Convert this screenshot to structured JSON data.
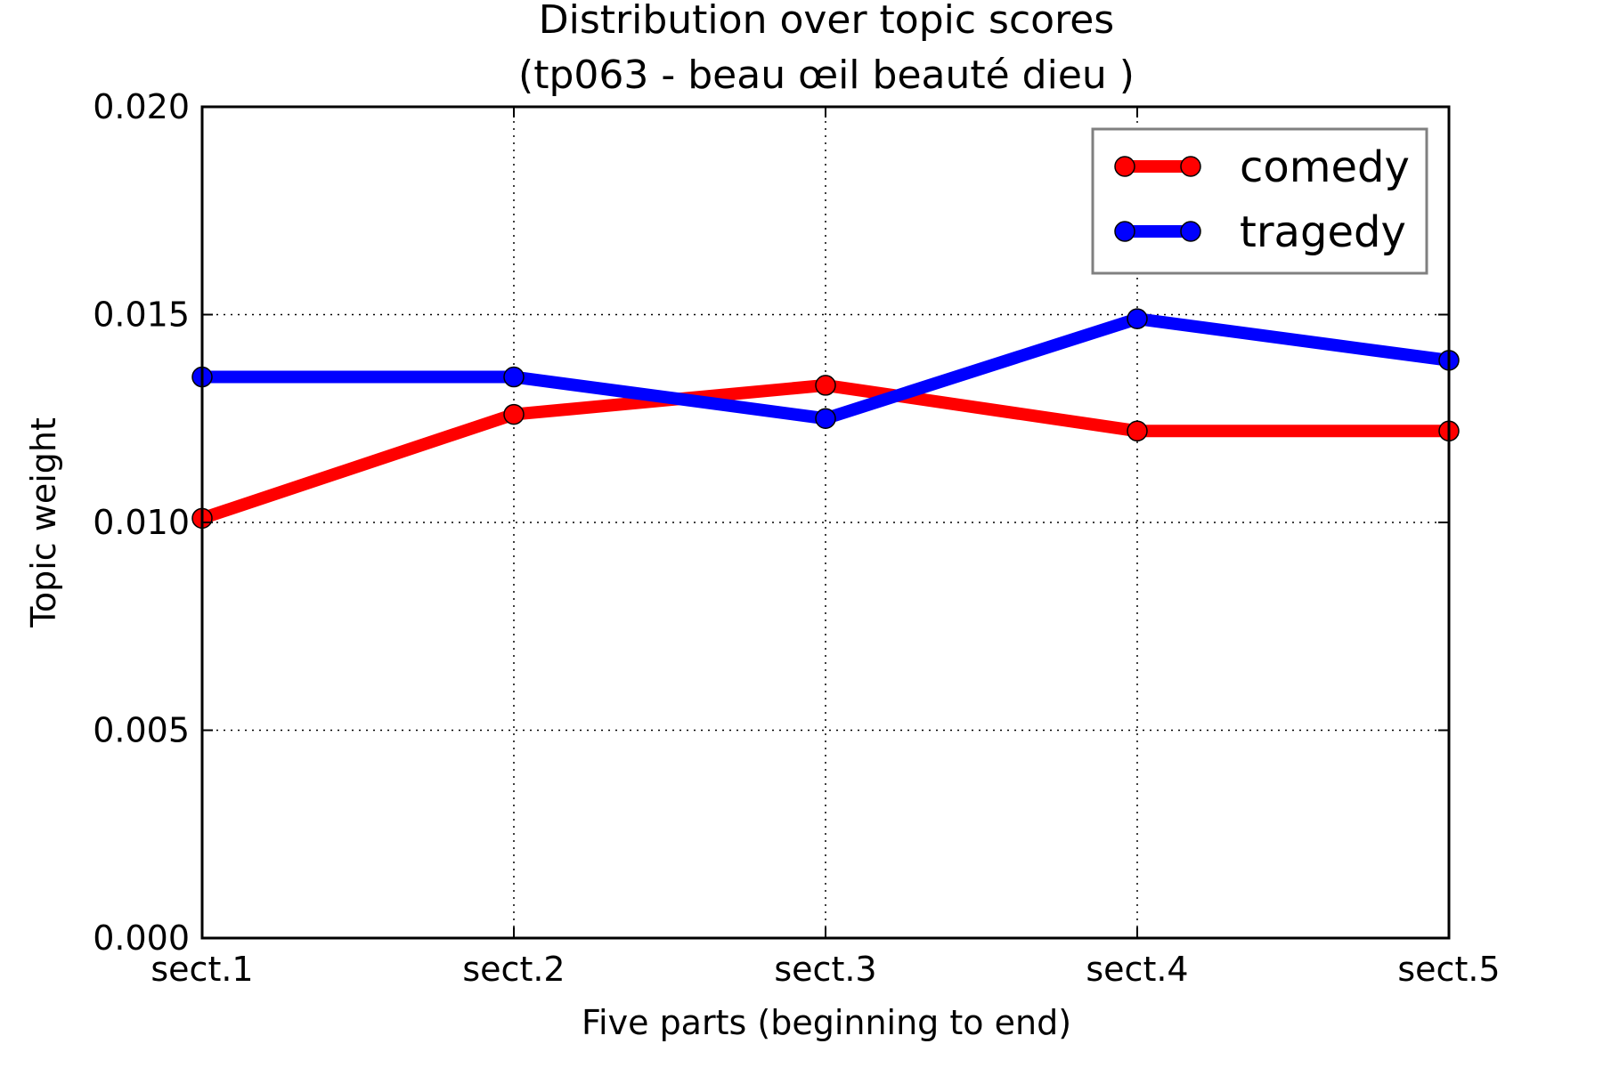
{
  "chart_data": {
    "type": "line",
    "title": "Distribution over topic scores",
    "subtitle": "(tp063 - beau œil beauté dieu )",
    "xlabel": "Five parts (beginning to end)",
    "ylabel": "Topic weight",
    "categories": [
      "sect.1",
      "sect.2",
      "sect.3",
      "sect.4",
      "sect.5"
    ],
    "ylim": [
      0.0,
      0.02
    ],
    "yticks": [
      "0.000",
      "0.005",
      "0.010",
      "0.015",
      "0.020"
    ],
    "ytick_values": [
      0.0,
      0.005,
      0.01,
      0.015,
      0.02
    ],
    "grid": true,
    "legend_position": "top-right",
    "series": [
      {
        "name": "comedy",
        "color": "#ff0000",
        "values": [
          0.0101,
          0.0126,
          0.0133,
          0.0122,
          0.0122
        ]
      },
      {
        "name": "tragedy",
        "color": "#0000ff",
        "values": [
          0.0135,
          0.0135,
          0.0125,
          0.0149,
          0.0139
        ]
      }
    ]
  }
}
